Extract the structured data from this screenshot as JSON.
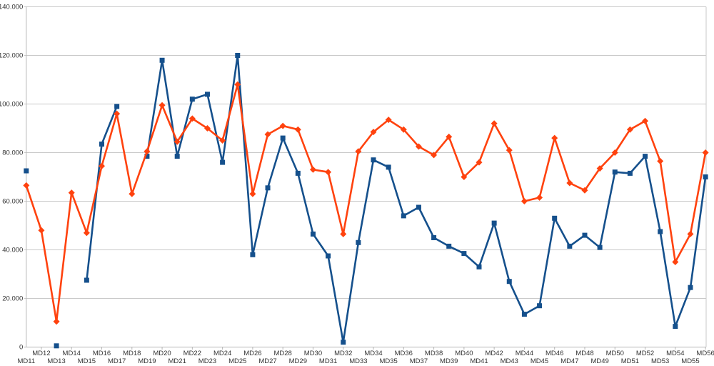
{
  "chart_data": {
    "type": "line",
    "title": "",
    "legend": "none",
    "grid": "horizontal",
    "categories": [
      "MD11",
      "MD12",
      "MD13",
      "MD14",
      "MD15",
      "MD16",
      "MD17",
      "MD18",
      "MD19",
      "MD20",
      "MD21",
      "MD22",
      "MD23",
      "MD24",
      "MD25",
      "MD26",
      "MD27",
      "MD28",
      "MD29",
      "MD30",
      "MD31",
      "MD32",
      "MD33",
      "MD34",
      "MD35",
      "MD36",
      "MD37",
      "MD38",
      "MD39",
      "MD40",
      "MD41",
      "MD42",
      "MD43",
      "MD44",
      "MD45",
      "MD46",
      "MD47",
      "MD48",
      "MD49",
      "MD50",
      "MD51",
      "MD52",
      "MD53",
      "MD54",
      "MD55",
      "MD56"
    ],
    "series": [
      {
        "name": "series-blue",
        "color": "#15508c",
        "marker": "square",
        "values": [
          72500,
          null,
          500,
          null,
          27500,
          83500,
          99000,
          null,
          78500,
          118000,
          78500,
          102000,
          104000,
          76000,
          120000,
          38000,
          65500,
          86000,
          71500,
          46500,
          37500,
          2000,
          43000,
          77000,
          74000,
          54000,
          57500,
          45000,
          41500,
          38500,
          33000,
          51000,
          27000,
          13500,
          17000,
          53000,
          41500,
          46000,
          41000,
          72000,
          71500,
          78500,
          47500,
          8500,
          24500,
          70000
        ]
      },
      {
        "name": "series-orange",
        "color": "#ff420e",
        "marker": "diamond",
        "values": [
          66500,
          48000,
          10500,
          63500,
          47000,
          74500,
          96000,
          63000,
          80500,
          99500,
          84500,
          94000,
          90000,
          85000,
          108000,
          63000,
          87500,
          91000,
          89500,
          73000,
          72000,
          46500,
          80500,
          88500,
          93500,
          89500,
          82500,
          79000,
          86500,
          70000,
          76000,
          92000,
          81000,
          60000,
          61500,
          86000,
          67500,
          64500,
          73500,
          80000,
          89500,
          93000,
          76500,
          35000,
          46500,
          80000
        ]
      }
    ],
    "ylim": [
      0,
      140000
    ],
    "y_tick_step": 20000,
    "y_tick_labels": [
      "0",
      "20.000",
      "40.000",
      "60.000",
      "80.000",
      "100.000",
      "120.000",
      "140.000"
    ],
    "xlabel": "",
    "ylabel": ""
  },
  "colors": {
    "background": "#ffffff",
    "grid": "#c9c9c9",
    "axis": "#b6b6b6",
    "tick": "#b6b6b6",
    "label": "#333333"
  }
}
